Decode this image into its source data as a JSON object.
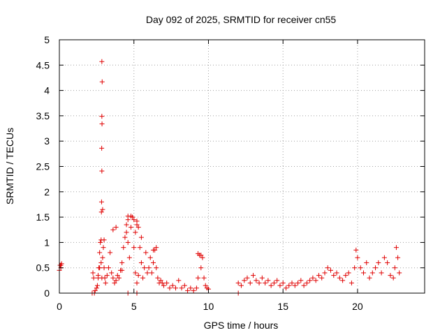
{
  "chart_data": {
    "type": "scatter",
    "title": "Day 092 of 2025, SRMTID for receiver cn55",
    "xlabel": "GPS time / hours",
    "ylabel": "SRMTID / TECUs",
    "xlim": [
      0,
      24.5
    ],
    "ylim": [
      0,
      5
    ],
    "xticks": [
      0,
      5,
      10,
      15,
      20
    ],
    "xtick_labels": [
      "0",
      "5",
      "10",
      "15",
      "20"
    ],
    "yticks": [
      0,
      0.5,
      1,
      1.5,
      2,
      2.5,
      3,
      3.5,
      4,
      4.5,
      5
    ],
    "ytick_labels": [
      "0",
      "0.5",
      "1",
      "1.5",
      "2",
      "2.5",
      "3",
      "3.5",
      "4",
      "4.5",
      "5"
    ],
    "grid": true,
    "marker": "+",
    "color": "#e00000",
    "series": [
      {
        "name": "cn55",
        "x": [
          0.0,
          0.05,
          0.1,
          0.15,
          2.2,
          2.25,
          2.3,
          2.35,
          2.4,
          2.5,
          2.55,
          2.6,
          2.65,
          2.7,
          2.75,
          2.8,
          2.85,
          2.9,
          2.95,
          3.0,
          3.05,
          3.1,
          3.2,
          3.3,
          3.4,
          3.5,
          3.6,
          3.7,
          3.8,
          3.9,
          4.0,
          4.1,
          4.2,
          4.3,
          4.4,
          4.5,
          4.6,
          4.7,
          4.8,
          4.9,
          5.0,
          5.1,
          5.2,
          5.3,
          5.4,
          5.5,
          5.6,
          5.7,
          5.8,
          5.9,
          6.0,
          6.1,
          6.2,
          6.3,
          6.4,
          6.5,
          6.6,
          6.7,
          6.8,
          6.9,
          7.0,
          7.2,
          7.4,
          7.6,
          7.8,
          8.0,
          8.2,
          8.4,
          8.6,
          8.8,
          9.0,
          9.2,
          9.3,
          9.4,
          9.5,
          9.6,
          9.7,
          9.8,
          9.9,
          10.0,
          12.0,
          12.2,
          12.4,
          12.6,
          12.8,
          13.0,
          13.2,
          13.4,
          13.6,
          13.8,
          14.0,
          14.2,
          14.4,
          14.6,
          14.8,
          15.0,
          15.2,
          15.4,
          15.6,
          15.8,
          16.0,
          16.2,
          16.4,
          16.6,
          16.8,
          17.0,
          17.2,
          17.4,
          17.6,
          17.8,
          18.0,
          18.2,
          18.4,
          18.6,
          18.8,
          19.0,
          19.2,
          19.4,
          19.6,
          19.8,
          19.9,
          20.0,
          20.2,
          20.4,
          20.6,
          20.8,
          21.0,
          21.2,
          21.4,
          21.6,
          21.8,
          22.0,
          22.2,
          22.4,
          22.5,
          22.6,
          22.7,
          22.8,
          2.85,
          2.87,
          2.85,
          2.86,
          2.84,
          2.85,
          2.83,
          2.82,
          2.9,
          4.6,
          4.8,
          5.2,
          5.3,
          2.6,
          2.7,
          3.6,
          3.8,
          4.2,
          4.5,
          5.0,
          5.1,
          5.5,
          6.5,
          9.3,
          9.5,
          0.1,
          2.8,
          3.0,
          4.6,
          5.2,
          6.3,
          4.6,
          5.2,
          12.0
        ],
        "y": [
          0.45,
          0.55,
          0.5,
          0.58,
          0.0,
          0.4,
          0.3,
          0.0,
          0.05,
          0.1,
          0.15,
          0.3,
          0.5,
          0.8,
          1.0,
          0.6,
          0.3,
          0.7,
          0.9,
          0.5,
          0.3,
          0.2,
          0.35,
          0.5,
          0.8,
          0.4,
          0.3,
          0.2,
          0.25,
          0.35,
          0.3,
          0.45,
          0.6,
          0.9,
          1.1,
          1.2,
          1.0,
          0.7,
          1.3,
          1.5,
          0.9,
          0.4,
          0.2,
          0.35,
          0.9,
          0.6,
          0.3,
          0.5,
          0.8,
          0.4,
          0.5,
          0.7,
          0.4,
          0.6,
          0.85,
          0.5,
          0.3,
          0.2,
          0.25,
          0.2,
          0.15,
          0.2,
          0.1,
          0.15,
          0.1,
          0.25,
          0.1,
          0.15,
          0.05,
          0.1,
          0.05,
          0.1,
          0.3,
          0.75,
          0.5,
          0.7,
          0.3,
          0.15,
          0.1,
          0.08,
          0.2,
          0.15,
          0.25,
          0.3,
          0.2,
          0.35,
          0.25,
          0.2,
          0.3,
          0.2,
          0.25,
          0.15,
          0.2,
          0.25,
          0.15,
          0.2,
          0.1,
          0.15,
          0.2,
          0.15,
          0.2,
          0.25,
          0.15,
          0.2,
          0.25,
          0.3,
          0.25,
          0.35,
          0.3,
          0.4,
          0.5,
          0.45,
          0.35,
          0.4,
          0.3,
          0.25,
          0.35,
          0.4,
          0.2,
          0.5,
          0.85,
          0.7,
          0.5,
          0.4,
          0.6,
          0.3,
          0.4,
          0.5,
          0.6,
          0.4,
          0.7,
          0.6,
          0.35,
          0.3,
          0.5,
          0.9,
          0.7,
          0.4,
          4.57,
          4.17,
          3.49,
          3.34,
          2.86,
          2.41,
          1.8,
          1.6,
          1.65,
          1.52,
          1.52,
          1.42,
          1.3,
          0.35,
          0.5,
          1.25,
          1.3,
          0.45,
          1.35,
          1.45,
          1.2,
          1.1,
          0.9,
          0.78,
          0.75,
          0.55,
          1.05,
          1.05,
          1.45,
          1.35,
          0.85,
          0.0,
          0.0,
          0.0
        ]
      }
    ]
  }
}
